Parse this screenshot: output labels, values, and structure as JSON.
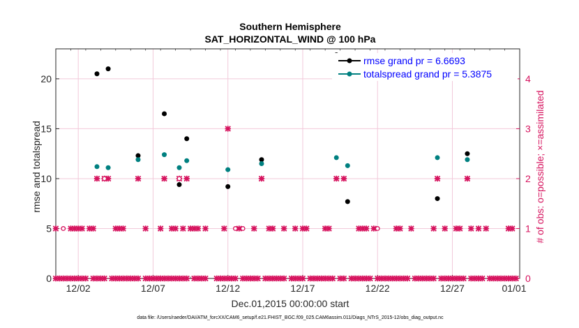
{
  "chart_data": {
    "type": "scatter",
    "title": "Southern Hemisphere",
    "subtitle": "SAT_HORIZONTAL_WIND @ 100 hPa",
    "xlabel": "Dec.01,2015 00:00:00 start",
    "ylabel": "rmse and totalspread",
    "ylabel_right": "# of obs: o=possible; ×=assimilated",
    "footnote": "data file: /Users/raeder/DAI/ATM_forcXX/CAM6_setup/f.e21.FHIST_BGC.f09_025.CAM6assim.011/Diags_NTrS_2015-12/obs_diag_output.nc",
    "xlim": [
      0,
      31
    ],
    "ylim": [
      0,
      23
    ],
    "ylim_right": [
      0,
      4.6
    ],
    "x_ticks": [
      {
        "x": 1.5,
        "label": "12/02"
      },
      {
        "x": 6.5,
        "label": "12/07"
      },
      {
        "x": 11.5,
        "label": "12/12"
      },
      {
        "x": 16.5,
        "label": "12/17"
      },
      {
        "x": 21.5,
        "label": "12/22"
      },
      {
        "x": 26.5,
        "label": "12/27"
      },
      {
        "x": 31.5,
        "label": "01/01"
      }
    ],
    "y_ticks": [
      0,
      5,
      10,
      15,
      20
    ],
    "y_ticks_right": [
      0,
      1,
      2,
      3,
      4
    ],
    "legend": [
      {
        "label": "rmse grand pr = 6.6693",
        "color": "#000000"
      },
      {
        "label": "totalspread grand pr = 5.3875",
        "color": "#008080"
      }
    ],
    "series": [
      {
        "name": "rmse",
        "color": "#000000",
        "axis": "left",
        "points": [
          [
            2.75,
            20.5
          ],
          [
            3.5,
            21.0
          ],
          [
            5.5,
            12.3
          ],
          [
            7.25,
            16.5
          ],
          [
            8.25,
            9.4
          ],
          [
            8.75,
            14.0
          ],
          [
            11.5,
            9.2
          ],
          [
            13.75,
            11.9
          ],
          [
            18.75,
            22.4
          ],
          [
            19.5,
            7.7
          ],
          [
            25.5,
            8.0
          ],
          [
            27.5,
            12.5
          ]
        ]
      },
      {
        "name": "totalspread",
        "color": "#008080",
        "axis": "left",
        "points": [
          [
            2.75,
            11.2
          ],
          [
            3.5,
            11.1
          ],
          [
            5.5,
            11.9
          ],
          [
            7.25,
            12.4
          ],
          [
            8.25,
            11.1
          ],
          [
            8.75,
            11.8
          ],
          [
            11.5,
            10.9
          ],
          [
            13.75,
            11.5
          ],
          [
            18.75,
            12.1
          ],
          [
            19.5,
            11.3
          ],
          [
            25.5,
            12.1
          ],
          [
            27.5,
            11.9
          ]
        ]
      },
      {
        "name": "obs assimilated",
        "color": "#d6135e",
        "axis": "right",
        "marker": "x",
        "points": [
          [
            0,
            0
          ],
          [
            0.25,
            0
          ],
          [
            0.5,
            0
          ],
          [
            0.75,
            0
          ],
          [
            1,
            0
          ],
          [
            1.25,
            0
          ],
          [
            1.5,
            0
          ],
          [
            1.75,
            0
          ],
          [
            2,
            0
          ],
          [
            2.5,
            0
          ],
          [
            2.75,
            0
          ],
          [
            3,
            0
          ],
          [
            3.25,
            0
          ],
          [
            3.75,
            0
          ],
          [
            4,
            0
          ],
          [
            4.25,
            0
          ],
          [
            4.5,
            0
          ],
          [
            4.75,
            0
          ],
          [
            5,
            0
          ],
          [
            5.25,
            0
          ],
          [
            5.5,
            0
          ],
          [
            6,
            0
          ],
          [
            6.25,
            0
          ],
          [
            6.5,
            0
          ],
          [
            6.75,
            0
          ],
          [
            7,
            0
          ],
          [
            7.25,
            0
          ],
          [
            7.5,
            0
          ],
          [
            7.75,
            0
          ],
          [
            8,
            0
          ],
          [
            8.25,
            0
          ],
          [
            8.5,
            0
          ],
          [
            8.75,
            0
          ],
          [
            9.25,
            0
          ],
          [
            9.5,
            0
          ],
          [
            9.75,
            0
          ],
          [
            10,
            0
          ],
          [
            10.75,
            0
          ],
          [
            11,
            0
          ],
          [
            11.25,
            0
          ],
          [
            11.5,
            0
          ],
          [
            11.75,
            0
          ],
          [
            12,
            0
          ],
          [
            12.5,
            0
          ],
          [
            12.75,
            0
          ],
          [
            13,
            0
          ],
          [
            13.25,
            0
          ],
          [
            13.5,
            0
          ],
          [
            14,
            0
          ],
          [
            14.25,
            0
          ],
          [
            14.5,
            0
          ],
          [
            14.75,
            0
          ],
          [
            15,
            0
          ],
          [
            15.25,
            0
          ],
          [
            15.75,
            0
          ],
          [
            16,
            0
          ],
          [
            16.25,
            0
          ],
          [
            16.5,
            0
          ],
          [
            17,
            0
          ],
          [
            17.25,
            0
          ],
          [
            17.5,
            0
          ],
          [
            17.75,
            0
          ],
          [
            18,
            0
          ],
          [
            18.25,
            0
          ],
          [
            18.5,
            0
          ],
          [
            19,
            0
          ],
          [
            19.25,
            0
          ],
          [
            19.75,
            0
          ],
          [
            20,
            0
          ],
          [
            20.25,
            0
          ],
          [
            20.5,
            0
          ],
          [
            20.75,
            0
          ],
          [
            21,
            0
          ],
          [
            21.5,
            0
          ],
          [
            21.75,
            0
          ],
          [
            22,
            0
          ],
          [
            22.25,
            0
          ],
          [
            22.5,
            0
          ],
          [
            22.75,
            0
          ],
          [
            23,
            0
          ],
          [
            23.25,
            0
          ],
          [
            23.5,
            0
          ],
          [
            24,
            0
          ],
          [
            24.25,
            0
          ],
          [
            24.5,
            0
          ],
          [
            24.75,
            0
          ],
          [
            25,
            0
          ],
          [
            25.25,
            0
          ],
          [
            25.75,
            0
          ],
          [
            26,
            0
          ],
          [
            26.25,
            0
          ],
          [
            26.5,
            0
          ],
          [
            26.75,
            0
          ],
          [
            27,
            0
          ],
          [
            27.25,
            0
          ],
          [
            27.75,
            0
          ],
          [
            28,
            0
          ],
          [
            28.25,
            0
          ],
          [
            28.5,
            0
          ],
          [
            29,
            0
          ],
          [
            29.25,
            0
          ],
          [
            29.5,
            0
          ],
          [
            29.75,
            0
          ],
          [
            30,
            0
          ],
          [
            30.25,
            0
          ],
          [
            30.5,
            0
          ],
          [
            30.75,
            0
          ],
          [
            0,
            1
          ],
          [
            1,
            1
          ],
          [
            1.25,
            1
          ],
          [
            1.5,
            1
          ],
          [
            1.75,
            1
          ],
          [
            2.25,
            1
          ],
          [
            2.5,
            1
          ],
          [
            4,
            1
          ],
          [
            4.25,
            1
          ],
          [
            4.5,
            1
          ],
          [
            6,
            1
          ],
          [
            7,
            1
          ],
          [
            7.75,
            1
          ],
          [
            8,
            1
          ],
          [
            8.5,
            1
          ],
          [
            9,
            1
          ],
          [
            9.25,
            1
          ],
          [
            9.5,
            1
          ],
          [
            10,
            1
          ],
          [
            11.25,
            1
          ],
          [
            12.25,
            1
          ],
          [
            13.25,
            1
          ],
          [
            14.25,
            1
          ],
          [
            14.5,
            1
          ],
          [
            15.25,
            1
          ],
          [
            16,
            1
          ],
          [
            16.5,
            1
          ],
          [
            16.75,
            1
          ],
          [
            18,
            1
          ],
          [
            18.25,
            1
          ],
          [
            20.25,
            1
          ],
          [
            20.5,
            1
          ],
          [
            20.75,
            1
          ],
          [
            21.25,
            1
          ],
          [
            22.75,
            1
          ],
          [
            23,
            1
          ],
          [
            23.75,
            1
          ],
          [
            25.25,
            1
          ],
          [
            26,
            1
          ],
          [
            26.75,
            1
          ],
          [
            27,
            1
          ],
          [
            27.75,
            1
          ],
          [
            28.25,
            1
          ],
          [
            28.75,
            1
          ],
          [
            30.25,
            1
          ],
          [
            30.5,
            1
          ],
          [
            2.75,
            2
          ],
          [
            3.25,
            2
          ],
          [
            3.5,
            2
          ],
          [
            5.5,
            2
          ],
          [
            7.25,
            2
          ],
          [
            8.25,
            2
          ],
          [
            8.75,
            2
          ],
          [
            13.75,
            2
          ],
          [
            18.75,
            2
          ],
          [
            19.25,
            2
          ],
          [
            25.5,
            2
          ],
          [
            27.5,
            2
          ],
          [
            11.5,
            3
          ]
        ]
      },
      {
        "name": "obs possible",
        "color": "#d6135e",
        "axis": "right",
        "marker": "o",
        "points": [
          [
            0.5,
            1
          ],
          [
            3.25,
            2
          ],
          [
            12.5,
            1
          ],
          [
            21.5,
            1
          ],
          [
            8.25,
            2
          ],
          [
            12,
            1
          ]
        ]
      }
    ]
  }
}
